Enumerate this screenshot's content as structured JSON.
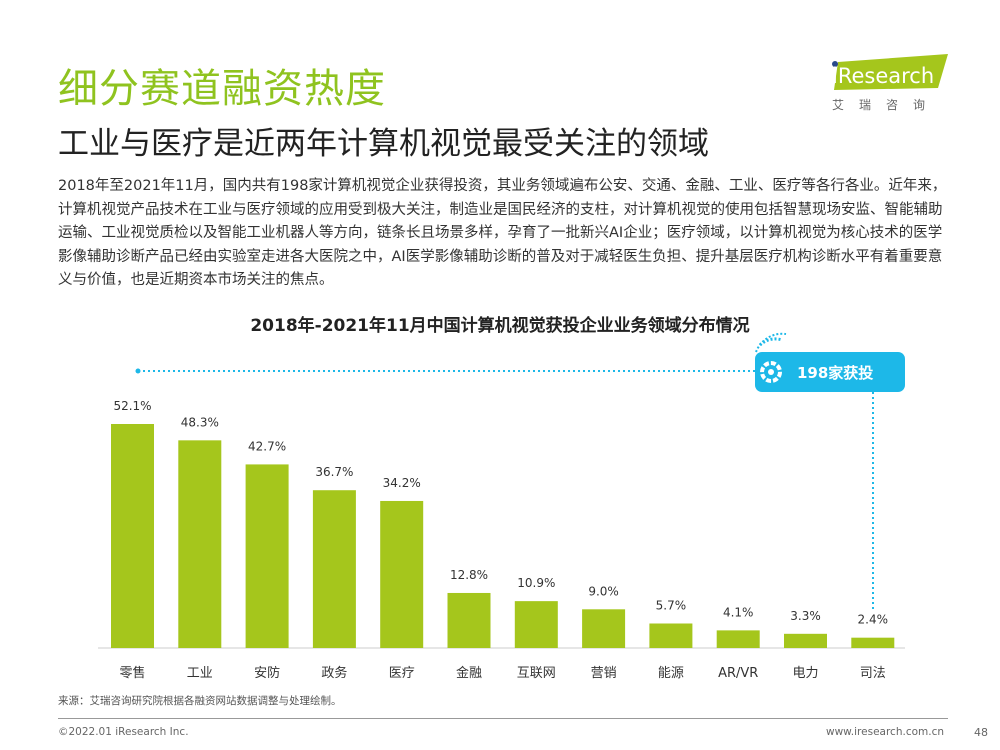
{
  "header": {
    "title": "细分赛道融资热度",
    "subtitle": "工业与医疗是近两年计算机视觉最受关注的领域",
    "logo_text": "iResearch",
    "logo_sub": "艾瑞咨询"
  },
  "body": "2018年至2021年11月，国内共有198家计算机视觉企业获得投资，其业务领域遍布公安、交通、金融、工业、医疗等各行各业。近年来，计算机视觉产品技术在工业与医疗领域的应用受到极大关注，制造业是国民经济的支柱，对计算机视觉的使用包括智慧现场安监、智能辅助运输、工业视觉质检以及智能工业机器人等方向，链条长且场景多样，孕育了一批新兴AI企业；医疗领域，以计算机视觉为核心技术的医学影像辅助诊断产品已经由实验室走进各大医院之中，AI医学影像辅助诊断的普及对于减轻医生负担、提升基层医疗机构诊断水平有着重要意义与价值，也是近期资本市场关注的焦点。",
  "chart_data": {
    "type": "bar",
    "title": "2018年-2021年11月中国计算机视觉获投企业业务领域分布情况",
    "categories": [
      "零售",
      "工业",
      "安防",
      "政务",
      "医疗",
      "金融",
      "互联网",
      "营销",
      "能源",
      "AR/VR",
      "电力",
      "司法"
    ],
    "values": [
      52.1,
      48.3,
      42.7,
      36.7,
      34.2,
      12.8,
      10.9,
      9.0,
      5.7,
      4.1,
      3.3,
      2.4
    ],
    "value_labels": [
      "52.1%",
      "48.3%",
      "42.7%",
      "36.7%",
      "34.2%",
      "12.8%",
      "10.9%",
      "9.0%",
      "5.7%",
      "4.1%",
      "3.3%",
      "2.4%"
    ],
    "ylim": [
      0,
      60
    ],
    "grid": false,
    "annotation": "198家获投",
    "colors": {
      "bar": "#a5c61c",
      "annotation": "#1db8e8",
      "title": "#8fc31f"
    }
  },
  "footer": {
    "source": "来源：艾瑞咨询研究院根据各融资网站数据调整与处理绘制。",
    "copyright": "©2022.01 iResearch Inc.",
    "site": "www.iresearch.com.cn",
    "page": "48"
  }
}
